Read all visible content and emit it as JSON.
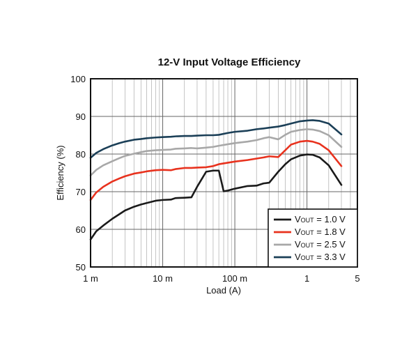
{
  "chart_data": {
    "type": "line",
    "title": "12-V Input Voltage Efficiency",
    "xlabel": "Load (A)",
    "ylabel": "Efficiency (%)",
    "x_scale": "log",
    "xlim": [
      0.001,
      5
    ],
    "ylim": [
      50,
      100
    ],
    "x_ticks": [
      {
        "value": 0.001,
        "label": "1 m"
      },
      {
        "value": 0.01,
        "label": "10 m"
      },
      {
        "value": 0.1,
        "label": "100 m"
      },
      {
        "value": 1,
        "label": "1"
      },
      {
        "value": 5,
        "label": "5"
      }
    ],
    "y_ticks": [
      50,
      60,
      70,
      80,
      90,
      100
    ],
    "grid": true,
    "legend": {
      "position": "bottom-right",
      "entries": [
        {
          "prefix": "V",
          "sub": "OUT",
          "suffix": " = 1.0 V",
          "color": "#1a1a1a"
        },
        {
          "prefix": "V",
          "sub": "OUT",
          "suffix": " = 1.8 V",
          "color": "#e8321e"
        },
        {
          "prefix": "V",
          "sub": "OUT",
          "suffix": " = 2.5 V",
          "color": "#a8a8a8"
        },
        {
          "prefix": "V",
          "sub": "OUT",
          "suffix": " = 3.3 V",
          "color": "#1b3f57"
        }
      ]
    },
    "series": [
      {
        "color": "#1a1a1a",
        "x": [
          0.001,
          0.0012,
          0.0015,
          0.002,
          0.0025,
          0.003,
          0.004,
          0.005,
          0.006,
          0.008,
          0.01,
          0.013,
          0.015,
          0.02,
          0.025,
          0.03,
          0.04,
          0.05,
          0.06,
          0.07,
          0.08,
          0.1,
          0.15,
          0.2,
          0.25,
          0.3,
          0.4,
          0.5,
          0.6,
          0.8,
          1,
          1.2,
          1.5,
          2,
          3
        ],
        "y": [
          57.3,
          59.5,
          61.0,
          62.8,
          64.0,
          65.0,
          66.0,
          66.6,
          67.0,
          67.6,
          67.8,
          67.9,
          68.3,
          68.4,
          68.5,
          71.3,
          75.3,
          75.6,
          75.6,
          70.1,
          70.3,
          70.8,
          71.5,
          71.6,
          72.2,
          72.4,
          75.3,
          77.3,
          78.6,
          79.6,
          79.9,
          79.8,
          79.1,
          77.0,
          71.8
        ]
      },
      {
        "color": "#e8321e",
        "x": [
          0.001,
          0.0012,
          0.0015,
          0.002,
          0.0025,
          0.003,
          0.004,
          0.005,
          0.006,
          0.008,
          0.01,
          0.013,
          0.015,
          0.02,
          0.025,
          0.03,
          0.04,
          0.05,
          0.06,
          0.08,
          0.1,
          0.15,
          0.2,
          0.25,
          0.3,
          0.4,
          0.5,
          0.6,
          0.8,
          1,
          1.2,
          1.5,
          2,
          3
        ],
        "y": [
          67.8,
          69.8,
          71.3,
          72.7,
          73.5,
          74.1,
          74.8,
          75.1,
          75.4,
          75.7,
          75.8,
          75.7,
          76.0,
          76.3,
          76.3,
          76.4,
          76.5,
          76.8,
          77.3,
          77.7,
          78.0,
          78.4,
          78.8,
          79.1,
          79.4,
          79.2,
          81.0,
          82.5,
          83.3,
          83.5,
          83.3,
          82.7,
          81.0,
          76.8
        ]
      },
      {
        "color": "#a8a8a8",
        "x": [
          0.001,
          0.0012,
          0.0015,
          0.002,
          0.0025,
          0.003,
          0.004,
          0.005,
          0.006,
          0.008,
          0.01,
          0.013,
          0.015,
          0.02,
          0.025,
          0.03,
          0.04,
          0.05,
          0.06,
          0.08,
          0.1,
          0.15,
          0.2,
          0.25,
          0.3,
          0.4,
          0.5,
          0.6,
          0.8,
          1,
          1.2,
          1.5,
          2,
          3
        ],
        "y": [
          74.3,
          75.8,
          77.0,
          78.1,
          78.9,
          79.5,
          80.1,
          80.5,
          80.8,
          81.0,
          81.1,
          81.2,
          81.4,
          81.5,
          81.6,
          81.5,
          81.7,
          81.9,
          82.2,
          82.6,
          82.9,
          83.3,
          83.7,
          84.2,
          84.5,
          83.9,
          85.1,
          85.9,
          86.4,
          86.6,
          86.5,
          86.1,
          85.0,
          81.9
        ]
      },
      {
        "color": "#1b3f57",
        "x": [
          0.001,
          0.0012,
          0.0015,
          0.002,
          0.0025,
          0.003,
          0.004,
          0.005,
          0.006,
          0.008,
          0.01,
          0.013,
          0.015,
          0.02,
          0.025,
          0.03,
          0.04,
          0.05,
          0.06,
          0.08,
          0.1,
          0.15,
          0.2,
          0.25,
          0.3,
          0.4,
          0.5,
          0.6,
          0.8,
          1,
          1.2,
          1.5,
          2,
          3
        ],
        "y": [
          79.0,
          80.3,
          81.3,
          82.3,
          82.9,
          83.3,
          83.8,
          84.0,
          84.2,
          84.4,
          84.5,
          84.6,
          84.7,
          84.8,
          84.8,
          84.9,
          85.0,
          85.0,
          85.1,
          85.6,
          85.9,
          86.2,
          86.6,
          86.8,
          87.0,
          87.3,
          87.7,
          88.1,
          88.7,
          88.9,
          89.0,
          88.8,
          88.1,
          85.2
        ]
      }
    ]
  }
}
